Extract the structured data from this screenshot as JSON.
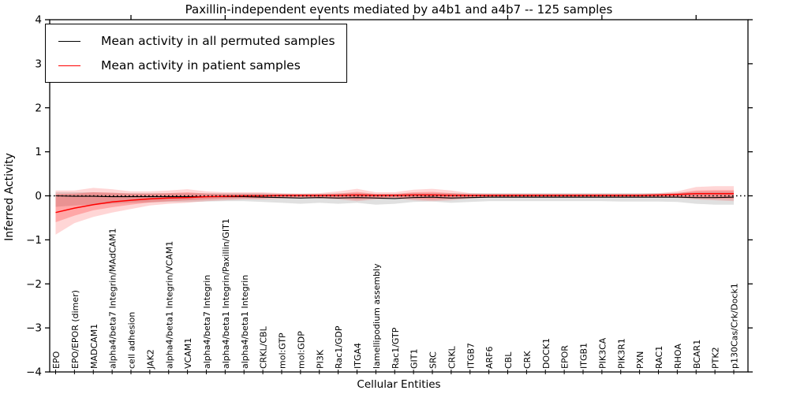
{
  "chart_data": {
    "type": "line",
    "title": "Paxillin-independent events mediated by a4b1 and a4b7 -- 125 samples",
    "xlabel": "Cellular Entities",
    "ylabel": "Inferred Activity",
    "ylim": [
      -4,
      4
    ],
    "ytick_labels": [
      "4",
      "3",
      "2",
      "1",
      "0",
      "−1",
      "−2",
      "−3",
      "−4"
    ],
    "ytick_values": [
      4,
      3,
      2,
      1,
      0,
      -1,
      -2,
      -3,
      -4
    ],
    "grid": false,
    "legend_position": "upper left",
    "legend": [
      {
        "label": "Mean activity in all permuted samples",
        "color": "#000000"
      },
      {
        "label": "Mean activity in patient samples",
        "color": "#ff0000"
      }
    ],
    "colors": {
      "permuted_line": "#000000",
      "patient_line": "#ff0000",
      "permuted_band": "#000000",
      "patient_band": "#ff0000",
      "zero_line": "#000000"
    },
    "entities": [
      "EPO",
      "EPO/EPOR (dimer)",
      "MADCAM1",
      "alpha4/beta7 Integrin/MAdCAM1",
      "cell adhesion",
      "JAK2",
      "alpha4/beta1 Integrin/VCAM1",
      "VCAM1",
      "alpha4/beta7 Integrin",
      "alpha4/beta1 Integrin/Paxillin/GIT1",
      "alpha4/beta1 Integrin",
      "CRKL/CBL",
      "mol:GTP",
      "mol:GDP",
      "PI3K",
      "Rac1/GDP",
      "ITGA4",
      "lamellipodium assembly",
      "Rac1/GTP",
      "GIT1",
      "SRC",
      "CRKL",
      "ITGB7",
      "ARF6",
      "CBL",
      "CRK",
      "DOCK1",
      "EPOR",
      "ITGB1",
      "PIK3CA",
      "PIK3R1",
      "PXN",
      "RAC1",
      "RHOA",
      "BCAR1",
      "PTK2",
      "p130Cas/Crk/Dock1"
    ],
    "series": [
      {
        "name": "Mean activity in all permuted samples",
        "values": [
          0.0,
          -0.01,
          -0.01,
          -0.02,
          -0.02,
          -0.02,
          -0.02,
          -0.02,
          -0.02,
          -0.02,
          -0.02,
          -0.03,
          -0.04,
          -0.05,
          -0.04,
          -0.05,
          -0.04,
          -0.05,
          -0.06,
          -0.04,
          -0.03,
          -0.05,
          -0.04,
          -0.03,
          -0.03,
          -0.03,
          -0.03,
          -0.03,
          -0.03,
          -0.03,
          -0.03,
          -0.03,
          -0.03,
          -0.03,
          -0.04,
          -0.04,
          -0.03
        ]
      },
      {
        "name": "Mean activity in patient samples",
        "values": [
          -0.38,
          -0.28,
          -0.2,
          -0.14,
          -0.1,
          -0.07,
          -0.05,
          -0.04,
          -0.02,
          -0.01,
          0.0,
          0.0,
          0.01,
          0.01,
          0.01,
          0.01,
          0.02,
          0.01,
          0.01,
          0.02,
          0.02,
          0.01,
          0.01,
          0.01,
          0.01,
          0.01,
          0.01,
          0.01,
          0.01,
          0.01,
          0.01,
          0.01,
          0.02,
          0.03,
          0.05,
          0.05,
          0.05
        ]
      }
    ],
    "bands": {
      "gray_hi": [
        0.08,
        0.08,
        0.08,
        0.07,
        0.06,
        0.06,
        0.06,
        0.06,
        0.06,
        0.06,
        0.06,
        0.06,
        0.05,
        0.05,
        0.05,
        0.06,
        0.06,
        0.05,
        0.05,
        0.06,
        0.06,
        0.06,
        0.06,
        0.06,
        0.06,
        0.06,
        0.06,
        0.06,
        0.06,
        0.06,
        0.06,
        0.06,
        0.06,
        0.07,
        0.09,
        0.1,
        0.1
      ],
      "gray_lo": [
        -0.25,
        -0.22,
        -0.2,
        -0.18,
        -0.16,
        -0.15,
        -0.14,
        -0.14,
        -0.13,
        -0.12,
        -0.12,
        -0.14,
        -0.16,
        -0.18,
        -0.16,
        -0.18,
        -0.16,
        -0.2,
        -0.18,
        -0.14,
        -0.13,
        -0.16,
        -0.14,
        -0.12,
        -0.12,
        -0.12,
        -0.12,
        -0.12,
        -0.12,
        -0.12,
        -0.13,
        -0.13,
        -0.13,
        -0.14,
        -0.18,
        -0.2,
        -0.2
      ],
      "red_outer_hi": [
        0.12,
        0.12,
        0.18,
        0.15,
        0.1,
        0.1,
        0.12,
        0.15,
        0.1,
        0.08,
        0.08,
        0.08,
        0.06,
        0.05,
        0.06,
        0.1,
        0.16,
        0.08,
        0.08,
        0.14,
        0.16,
        0.12,
        0.06,
        0.05,
        0.05,
        0.05,
        0.05,
        0.05,
        0.05,
        0.05,
        0.05,
        0.05,
        0.06,
        0.1,
        0.2,
        0.22,
        0.22
      ],
      "red_outer_lo": [
        -0.88,
        -0.62,
        -0.48,
        -0.38,
        -0.3,
        -0.22,
        -0.18,
        -0.16,
        -0.12,
        -0.1,
        -0.08,
        -0.08,
        -0.06,
        -0.05,
        -0.06,
        -0.08,
        -0.12,
        -0.08,
        -0.06,
        -0.1,
        -0.12,
        -0.1,
        -0.06,
        -0.04,
        -0.04,
        -0.04,
        -0.04,
        -0.04,
        -0.04,
        -0.04,
        -0.04,
        -0.04,
        -0.04,
        -0.05,
        -0.08,
        -0.1,
        -0.12
      ],
      "red_inner_hi": [
        0.04,
        0.05,
        0.08,
        0.07,
        0.05,
        0.05,
        0.06,
        0.08,
        0.05,
        0.04,
        0.04,
        0.04,
        0.03,
        0.03,
        0.03,
        0.05,
        0.09,
        0.04,
        0.04,
        0.08,
        0.09,
        0.06,
        0.03,
        0.03,
        0.03,
        0.03,
        0.03,
        0.03,
        0.03,
        0.03,
        0.03,
        0.03,
        0.03,
        0.06,
        0.12,
        0.13,
        0.13
      ],
      "red_inner_lo": [
        -0.6,
        -0.45,
        -0.33,
        -0.26,
        -0.2,
        -0.15,
        -0.12,
        -0.1,
        -0.08,
        -0.06,
        -0.05,
        -0.05,
        -0.04,
        -0.03,
        -0.04,
        -0.05,
        -0.08,
        -0.05,
        -0.04,
        -0.06,
        -0.08,
        -0.06,
        -0.04,
        -0.03,
        -0.03,
        -0.03,
        -0.03,
        -0.03,
        -0.03,
        -0.03,
        -0.03,
        -0.03,
        -0.03,
        -0.03,
        -0.05,
        -0.06,
        -0.07
      ]
    },
    "zero_line_value": 0,
    "top_tick_indices": [
      4,
      9,
      14,
      19,
      24,
      29,
      34
    ]
  }
}
